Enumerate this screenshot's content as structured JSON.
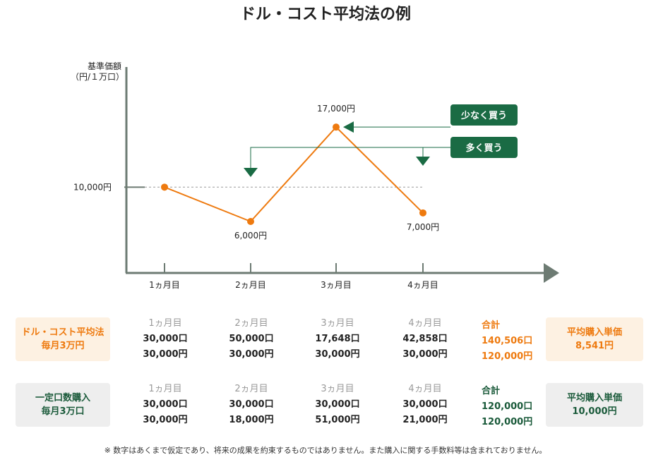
{
  "title": "ドル・コスト平均法の例",
  "note": "※ 数字はあくまで仮定であり、将来の成果を約束するものではありません。また購入に関する手数料等は含まれておりません。",
  "colors": {
    "orange": "#ee7a0f",
    "green": "#1a6b44",
    "axis": "#6d7b73",
    "ref": "#a8a8a8"
  },
  "chart_data": {
    "type": "line",
    "title": "ドル・コスト平均法の例",
    "ylabel": "基準価額\n（円/１万口）",
    "xlabel": "",
    "categories": [
      "1ヵ月目",
      "2ヵ月目",
      "3ヵ月目",
      "4ヵ月目"
    ],
    "series": [
      {
        "values": [
          10000,
          6000,
          17000,
          7000
        ]
      }
    ],
    "value_labels": [
      "",
      "6,000円",
      "17,000円",
      "7,000円"
    ],
    "reference_line": {
      "value": 10000,
      "label": "10,000円"
    },
    "annotations": [
      {
        "text": "少なく買う",
        "target_index": 2
      },
      {
        "text": "多く買う",
        "target_indices": [
          1,
          3
        ]
      }
    ],
    "ylim": [
      0,
      24000
    ],
    "grid": false
  },
  "table": {
    "months": [
      "1ヵ月目",
      "2ヵ月目",
      "3ヵ月目",
      "4ヵ月目"
    ],
    "dca": {
      "label_line1": "ドル・コスト平均法",
      "label_line2": "毎月3万円",
      "units": [
        "30,000口",
        "50,000口",
        "17,648口",
        "42,858口"
      ],
      "amounts": [
        "30,000円",
        "30,000円",
        "30,000円",
        "30,000円"
      ],
      "total_label": "合計",
      "total_units": "140,506口",
      "total_amount": "120,000円",
      "avg_label": "平均購入単価",
      "avg_value": "8,541円"
    },
    "fixed": {
      "label_line1": "一定口数購入",
      "label_line2": "毎月3万口",
      "units": [
        "30,000口",
        "30,000口",
        "30,000口",
        "30,000口"
      ],
      "amounts": [
        "30,000円",
        "18,000円",
        "51,000円",
        "21,000円"
      ],
      "total_label": "合計",
      "total_units": "120,000口",
      "total_amount": "120,000円",
      "avg_label": "平均購入単価",
      "avg_value": "10,000円"
    }
  }
}
